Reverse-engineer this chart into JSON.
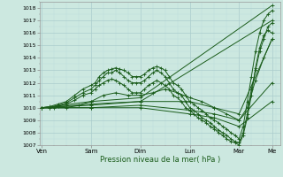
{
  "xlabel": "Pression niveau de la mer( hPa )",
  "bg_color": "#cce8e0",
  "plot_bg_color": "#cce8e0",
  "grid_major_color": "#aacccc",
  "grid_minor_color": "#bbdddd",
  "line_color": "#1a5c1a",
  "ylim": [
    1007,
    1018.5
  ],
  "yticks": [
    1007,
    1008,
    1009,
    1010,
    1011,
    1012,
    1013,
    1014,
    1015,
    1016,
    1017,
    1018
  ],
  "x_day_labels": [
    "Ven",
    "Sam",
    "Dim",
    "Lun",
    "Mar",
    "Me"
  ],
  "x_day_positions": [
    0,
    24,
    48,
    72,
    96,
    112
  ],
  "xlim": [
    -1,
    116
  ],
  "lines": [
    [
      0,
      1010.0,
      4,
      1010.1,
      8,
      1010.3,
      12,
      1010.5,
      16,
      1011.0,
      20,
      1011.5,
      24,
      1011.8,
      26,
      1012.0,
      28,
      1012.5,
      30,
      1012.8,
      32,
      1013.0,
      34,
      1013.1,
      36,
      1013.2,
      38,
      1013.1,
      40,
      1013.0,
      42,
      1012.8,
      44,
      1012.5,
      46,
      1012.5,
      48,
      1012.5,
      50,
      1012.7,
      52,
      1013.0,
      54,
      1013.2,
      56,
      1013.3,
      58,
      1013.2,
      60,
      1013.0,
      62,
      1012.5,
      64,
      1012.0,
      66,
      1011.8,
      68,
      1011.5,
      70,
      1011.0,
      72,
      1010.5,
      74,
      1010.3,
      76,
      1010.0,
      78,
      1009.8,
      80,
      1009.5,
      82,
      1009.2,
      84,
      1009.0,
      86,
      1008.8,
      88,
      1008.5,
      90,
      1008.3,
      92,
      1008.0,
      94,
      1007.8,
      96,
      1007.5,
      98,
      1008.5,
      100,
      1010.5,
      102,
      1012.5,
      104,
      1014.5,
      106,
      1016.0,
      108,
      1017.0,
      110,
      1017.5,
      112,
      1017.8
    ],
    [
      0,
      1010.0,
      4,
      1010.0,
      8,
      1010.2,
      12,
      1010.4,
      16,
      1010.8,
      20,
      1011.2,
      24,
      1011.5,
      26,
      1011.8,
      28,
      1012.2,
      30,
      1012.5,
      32,
      1012.8,
      34,
      1012.8,
      36,
      1013.0,
      38,
      1012.8,
      40,
      1012.5,
      42,
      1012.2,
      44,
      1012.0,
      46,
      1012.0,
      48,
      1012.0,
      50,
      1012.2,
      52,
      1012.5,
      54,
      1012.8,
      56,
      1013.0,
      58,
      1012.8,
      60,
      1012.5,
      62,
      1012.0,
      64,
      1011.5,
      66,
      1011.2,
      68,
      1011.0,
      70,
      1010.5,
      72,
      1010.0,
      74,
      1009.8,
      76,
      1009.5,
      78,
      1009.2,
      80,
      1009.0,
      82,
      1008.8,
      84,
      1008.5,
      86,
      1008.2,
      88,
      1008.0,
      90,
      1007.8,
      92,
      1007.5,
      94,
      1007.3,
      96,
      1007.2,
      98,
      1008.0,
      100,
      1009.5,
      102,
      1011.5,
      104,
      1013.0,
      106,
      1014.5,
      108,
      1015.5,
      110,
      1016.5,
      112,
      1016.8
    ],
    [
      0,
      1010.0,
      4,
      1010.0,
      8,
      1010.1,
      12,
      1010.3,
      16,
      1010.6,
      20,
      1011.0,
      24,
      1011.2,
      26,
      1011.5,
      28,
      1011.8,
      30,
      1012.0,
      32,
      1012.2,
      34,
      1012.3,
      36,
      1012.2,
      38,
      1012.0,
      40,
      1011.8,
      42,
      1011.5,
      44,
      1011.2,
      46,
      1011.2,
      48,
      1011.2,
      50,
      1011.5,
      52,
      1011.8,
      54,
      1012.0,
      56,
      1012.2,
      58,
      1012.0,
      60,
      1011.8,
      62,
      1011.5,
      64,
      1011.0,
      66,
      1010.8,
      68,
      1010.5,
      70,
      1010.0,
      72,
      1009.8,
      74,
      1009.5,
      76,
      1009.2,
      78,
      1009.0,
      80,
      1008.8,
      82,
      1008.5,
      84,
      1008.3,
      86,
      1008.0,
      88,
      1007.8,
      90,
      1007.5,
      92,
      1007.3,
      94,
      1007.2,
      96,
      1007.0,
      98,
      1007.8,
      100,
      1009.2,
      102,
      1011.0,
      104,
      1013.2,
      106,
      1014.8,
      108,
      1015.8,
      110,
      1016.2,
      112,
      1016.0
    ],
    [
      0,
      1010.0,
      6,
      1010.0,
      12,
      1010.0,
      18,
      1010.2,
      24,
      1010.5,
      30,
      1011.0,
      36,
      1011.2,
      42,
      1011.0,
      48,
      1011.0,
      54,
      1011.2,
      60,
      1011.5,
      66,
      1011.2,
      72,
      1010.8,
      78,
      1010.5,
      84,
      1010.0,
      90,
      1009.5,
      96,
      1009.0,
      100,
      1010.0,
      104,
      1012.2,
      108,
      1014.0,
      112,
      1015.5
    ],
    [
      0,
      1010.0,
      24,
      1010.5,
      48,
      1010.8,
      112,
      1018.2
    ],
    [
      0,
      1010.0,
      24,
      1010.3,
      48,
      1010.5,
      112,
      1017.0
    ],
    [
      0,
      1010.0,
      24,
      1010.2,
      48,
      1010.5,
      72,
      1010.5,
      84,
      1010.0,
      96,
      1009.5,
      112,
      1015.5
    ],
    [
      0,
      1010.0,
      24,
      1010.0,
      48,
      1010.2,
      72,
      1009.8,
      84,
      1009.5,
      96,
      1009.0,
      112,
      1012.0
    ],
    [
      0,
      1010.0,
      24,
      1010.0,
      48,
      1010.0,
      72,
      1009.5,
      84,
      1009.2,
      96,
      1008.5,
      112,
      1010.5
    ]
  ]
}
